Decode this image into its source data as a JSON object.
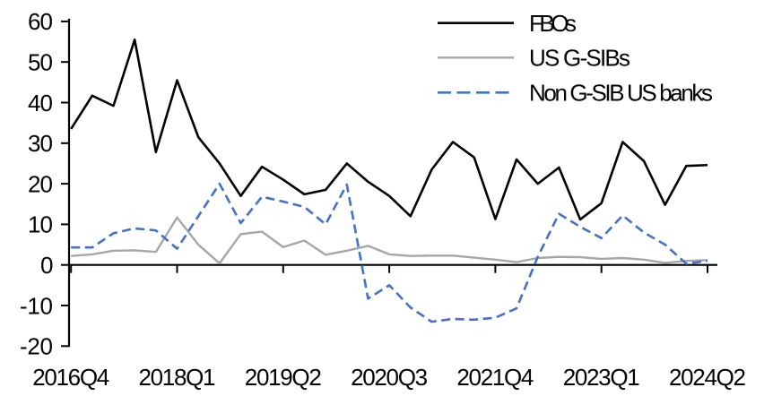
{
  "chart_data": {
    "type": "line",
    "title": "",
    "xlabel": "",
    "ylabel": "",
    "grid": false,
    "legend_position": "top-right",
    "ylim": [
      -20,
      60
    ],
    "y_ticks": [
      60,
      50,
      40,
      30,
      20,
      10,
      0,
      -10,
      -20
    ],
    "x_categories": [
      "2016Q4",
      "2017Q1",
      "2017Q2",
      "2017Q3",
      "2017Q4",
      "2018Q1",
      "2018Q2",
      "2018Q3",
      "2018Q4",
      "2019Q1",
      "2019Q2",
      "2019Q3",
      "2019Q4",
      "2020Q1",
      "2020Q2",
      "2020Q3",
      "2020Q4",
      "2021Q1",
      "2021Q2",
      "2021Q3",
      "2021Q4",
      "2022Q1",
      "2022Q2",
      "2022Q3",
      "2022Q4",
      "2023Q1",
      "2023Q2",
      "2023Q3",
      "2023Q4",
      "2024Q1",
      "2024Q2"
    ],
    "visible_x_tick_labels": [
      "2016Q4",
      "2018Q1",
      "2019Q2",
      "2020Q3",
      "2021Q4",
      "2023Q1",
      "2024Q2"
    ],
    "visible_x_tick_indices": [
      0,
      5,
      10,
      15,
      20,
      25,
      30
    ],
    "series": [
      {
        "name": "FBOs",
        "color": "#000000",
        "style": "solid",
        "values": [
          33.5,
          41.7,
          39.2,
          55.5,
          27.8,
          45.5,
          31.5,
          25,
          17,
          24.2,
          21,
          17.4,
          18.5,
          25,
          20.5,
          17,
          12,
          23.5,
          30.3,
          26.5,
          11.3,
          26,
          20,
          24,
          11.2,
          15.2,
          30.3,
          25.6,
          14.8,
          24.4,
          24.6
        ]
      },
      {
        "name": "US G-SIBs",
        "color": "#a6a6a6",
        "style": "solid",
        "values": [
          2.2,
          2.6,
          3.5,
          3.6,
          3.2,
          11.7,
          5,
          0.4,
          7.6,
          8.2,
          4.4,
          6,
          2.5,
          3.5,
          4.7,
          2.6,
          2.2,
          2.3,
          2.3,
          1.8,
          1.3,
          0.7,
          1.7,
          2,
          1.9,
          1.5,
          1.7,
          1.3,
          0.5,
          1,
          1.2
        ]
      },
      {
        "name": "Non G-SIB US banks",
        "color": "#4472c4",
        "style": "dashed",
        "values": [
          4.3,
          4.3,
          7.8,
          9,
          8.5,
          4,
          12,
          20,
          10.3,
          16.8,
          15.6,
          14.3,
          10,
          19.8,
          -8.3,
          -5,
          -10.5,
          -14,
          -13.3,
          -13.5,
          -13,
          -10.7,
          2,
          12.6,
          9.4,
          6.6,
          12.2,
          8,
          5,
          0.3,
          1
        ]
      }
    ]
  }
}
